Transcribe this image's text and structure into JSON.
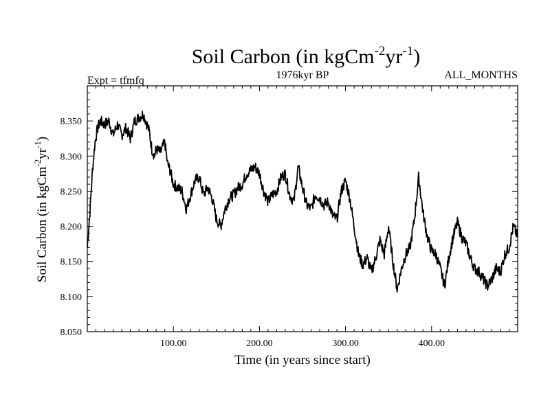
{
  "chart_data": {
    "type": "line",
    "title": "Soil Carbon (in kgCm",
    "title_sup1": "-2",
    "title_mid": "yr",
    "title_sup2": "-1",
    "title_end": ")",
    "subtitle_left": "Expt = tfmfq",
    "subtitle_center": "1976kyr BP",
    "subtitle_right": "ALL_MONTHS",
    "xlabel": "Time (in years since start)",
    "ylabel_parts": [
      "Soil Carbon (in kgCm",
      "-2",
      "yr",
      "-1",
      ")"
    ],
    "xlim": [
      0,
      500
    ],
    "ylim": [
      8.05,
      8.4
    ],
    "xticks": [
      100,
      200,
      300,
      400
    ],
    "xtick_labels": [
      "100.00",
      "200.00",
      "300.00",
      "400.00"
    ],
    "yticks": [
      8.05,
      8.1,
      8.15,
      8.2,
      8.25,
      8.3,
      8.35
    ],
    "ytick_labels": [
      "8.050",
      "8.100",
      "8.150",
      "8.200",
      "8.250",
      "8.300",
      "8.350"
    ],
    "line_color": "#000000",
    "series": [
      {
        "name": "Soil Carbon",
        "x": [
          0,
          3,
          6,
          9,
          12,
          15,
          20,
          25,
          30,
          35,
          40,
          45,
          50,
          55,
          60,
          65,
          68,
          72,
          75,
          78,
          80,
          85,
          90,
          93,
          96,
          100,
          105,
          110,
          115,
          120,
          125,
          130,
          135,
          140,
          145,
          150,
          155,
          160,
          165,
          170,
          175,
          180,
          185,
          190,
          195,
          200,
          205,
          210,
          215,
          220,
          225,
          230,
          235,
          240,
          245,
          250,
          255,
          260,
          265,
          270,
          275,
          280,
          285,
          290,
          295,
          300,
          305,
          310,
          315,
          320,
          325,
          330,
          335,
          340,
          345,
          350,
          355,
          360,
          365,
          370,
          375,
          380,
          385,
          390,
          395,
          400,
          405,
          410,
          415,
          420,
          425,
          430,
          435,
          440,
          445,
          450,
          455,
          460,
          465,
          470,
          475,
          480,
          485,
          490,
          495,
          500
        ],
        "values": [
          8.17,
          8.22,
          8.28,
          8.32,
          8.34,
          8.35,
          8.345,
          8.35,
          8.33,
          8.345,
          8.33,
          8.34,
          8.325,
          8.35,
          8.355,
          8.36,
          8.35,
          8.335,
          8.31,
          8.3,
          8.31,
          8.305,
          8.32,
          8.29,
          8.28,
          8.26,
          8.255,
          8.25,
          8.225,
          8.245,
          8.265,
          8.27,
          8.245,
          8.255,
          8.24,
          8.21,
          8.2,
          8.225,
          8.24,
          8.245,
          8.255,
          8.26,
          8.275,
          8.28,
          8.285,
          8.275,
          8.25,
          8.235,
          8.245,
          8.25,
          8.27,
          8.275,
          8.245,
          8.235,
          8.285,
          8.255,
          8.23,
          8.225,
          8.245,
          8.24,
          8.23,
          8.235,
          8.215,
          8.21,
          8.25,
          8.265,
          8.24,
          8.2,
          8.16,
          8.145,
          8.155,
          8.135,
          8.155,
          8.18,
          8.16,
          8.2,
          8.15,
          8.11,
          8.14,
          8.16,
          8.17,
          8.21,
          8.27,
          8.22,
          8.185,
          8.165,
          8.16,
          8.14,
          8.115,
          8.155,
          8.185,
          8.205,
          8.185,
          8.175,
          8.155,
          8.14,
          8.135,
          8.125,
          8.115,
          8.125,
          8.14,
          8.135,
          8.16,
          8.17,
          8.2,
          8.185
        ]
      }
    ]
  }
}
